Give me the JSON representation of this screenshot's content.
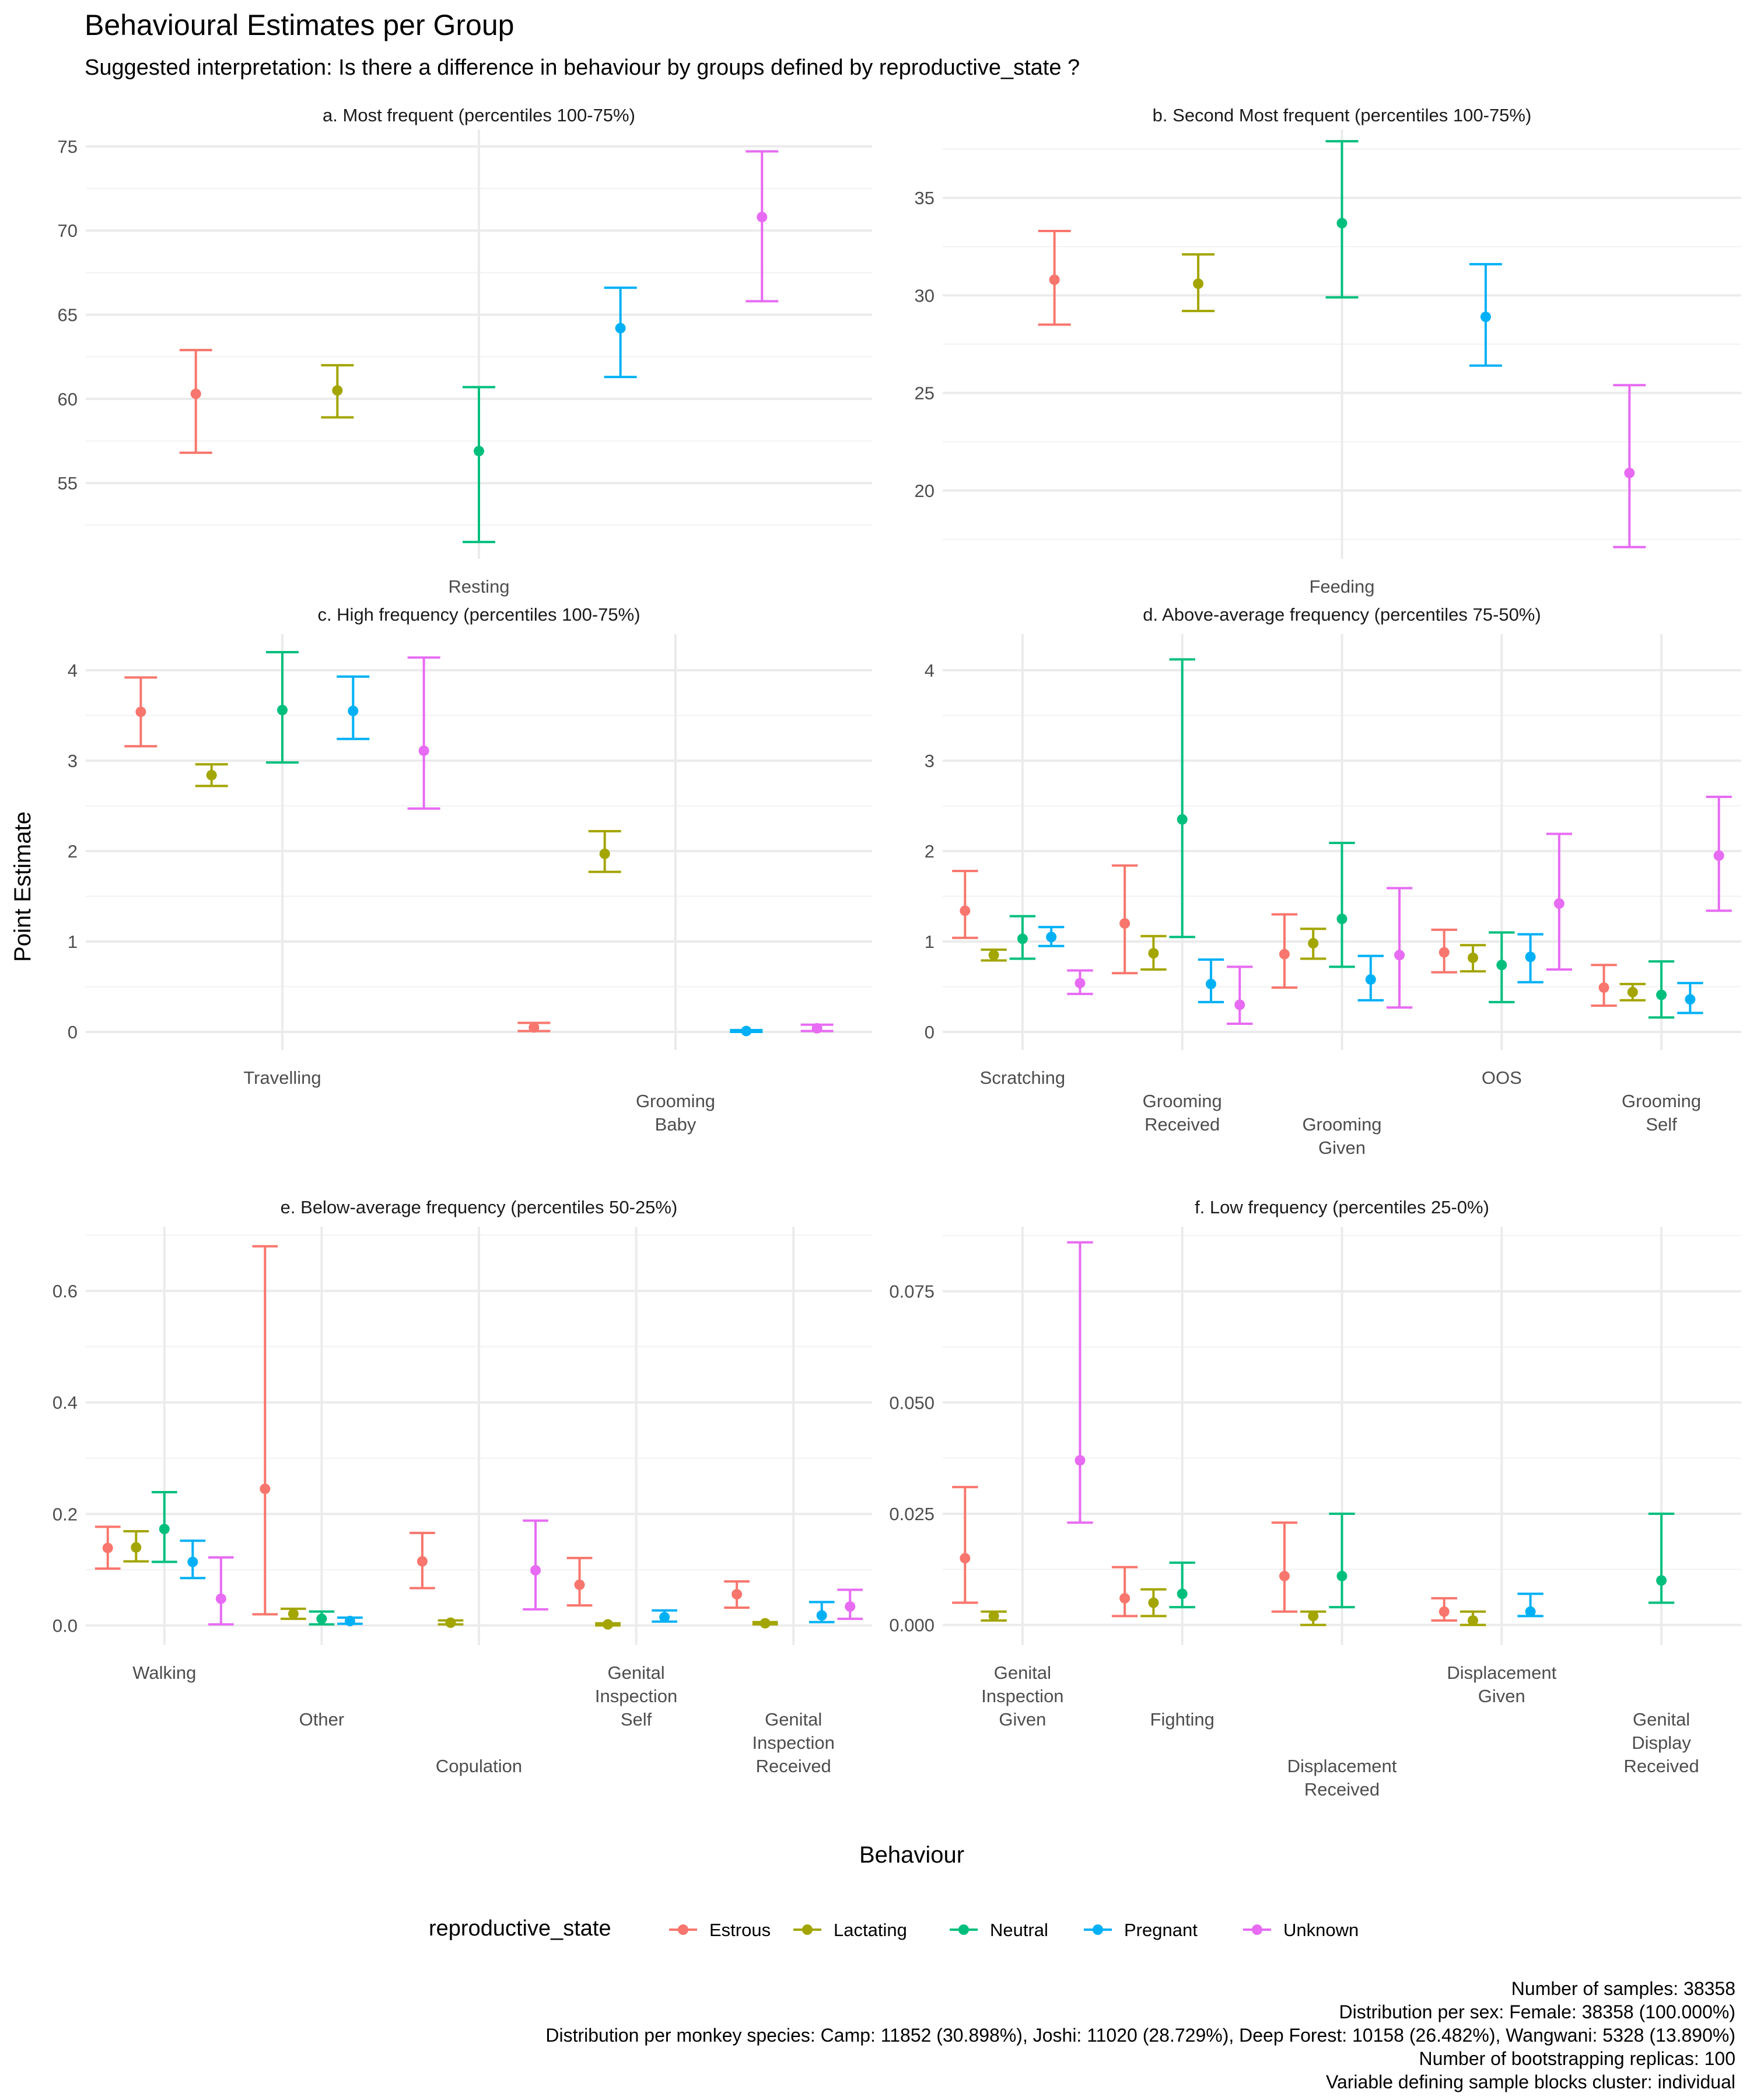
{
  "title": "Behavioural Estimates per Group",
  "subtitle": "Suggested interpretation: Is there a difference in behaviour by groups defined by reproductive_state ?",
  "ylabel": "Point Estimate",
  "xlabel": "Behaviour",
  "legend": {
    "title": "reproductive_state",
    "placement": "bottom",
    "groups": [
      "Estrous",
      "Lactating",
      "Neutral",
      "Pregnant",
      "Unknown"
    ],
    "colors": [
      "#F8766D",
      "#A3A500",
      "#00BF7D",
      "#00B0F6",
      "#E76BF3"
    ]
  },
  "caption": [
    "Number of samples: 38358",
    "Distribution per sex: Female: 38358 (100.000%)",
    "Distribution per monkey species: Camp: 11852 (30.898%), Joshi: 11020 (28.729%), Deep Forest: 10158 (26.482%), Wangwani: 5328 (13.890%)",
    "Number of bootstrapping replicas: 100",
    "Variable defining sample blocks cluster: individual"
  ],
  "chart_data": [
    {
      "type": "errorbar",
      "title": "a. Most frequent (percentiles 100-75%)",
      "ylim": [
        50.5,
        76
      ],
      "yticks": [
        55,
        60,
        65,
        70,
        75
      ],
      "grid": true,
      "categories": [
        {
          "name": "Resting",
          "label_lines": [
            "Resting"
          ],
          "label_row": 0,
          "points": [
            {
              "group": "Estrous",
              "estimate": 60.3,
              "lower": 56.8,
              "upper": 62.9
            },
            {
              "group": "Lactating",
              "estimate": 60.5,
              "lower": 58.9,
              "upper": 62.0
            },
            {
              "group": "Neutral",
              "estimate": 56.9,
              "lower": 51.5,
              "upper": 60.7
            },
            {
              "group": "Pregnant",
              "estimate": 64.2,
              "lower": 61.3,
              "upper": 66.6
            },
            {
              "group": "Unknown",
              "estimate": 70.8,
              "lower": 65.8,
              "upper": 74.7
            }
          ]
        }
      ]
    },
    {
      "type": "errorbar",
      "title": "b. Second Most frequent (percentiles 100-75%)",
      "ylim": [
        16.5,
        38.5
      ],
      "yticks": [
        20,
        25,
        30,
        35
      ],
      "grid": true,
      "categories": [
        {
          "name": "Feeding",
          "label_lines": [
            "Feeding"
          ],
          "label_row": 0,
          "points": [
            {
              "group": "Estrous",
              "estimate": 30.8,
              "lower": 28.5,
              "upper": 33.3
            },
            {
              "group": "Lactating",
              "estimate": 30.6,
              "lower": 29.2,
              "upper": 32.1
            },
            {
              "group": "Neutral",
              "estimate": 33.7,
              "lower": 29.9,
              "upper": 37.9
            },
            {
              "group": "Pregnant",
              "estimate": 28.9,
              "lower": 26.4,
              "upper": 31.6
            },
            {
              "group": "Unknown",
              "estimate": 20.9,
              "lower": 17.1,
              "upper": 25.4
            }
          ]
        }
      ]
    },
    {
      "type": "errorbar",
      "title": "c. High frequency (percentiles 100-75%)",
      "ylim": [
        -0.2,
        4.4
      ],
      "yticks": [
        0,
        1,
        2,
        3,
        4
      ],
      "grid": true,
      "categories": [
        {
          "name": "Travelling",
          "label_lines": [
            "Travelling"
          ],
          "label_row": 0,
          "points": [
            {
              "group": "Estrous",
              "estimate": 3.54,
              "lower": 3.16,
              "upper": 3.92
            },
            {
              "group": "Lactating",
              "estimate": 2.84,
              "lower": 2.72,
              "upper": 2.96
            },
            {
              "group": "Neutral",
              "estimate": 3.56,
              "lower": 2.98,
              "upper": 4.2
            },
            {
              "group": "Pregnant",
              "estimate": 3.55,
              "lower": 3.24,
              "upper": 3.93
            },
            {
              "group": "Unknown",
              "estimate": 3.11,
              "lower": 2.47,
              "upper": 4.14
            }
          ]
        },
        {
          "name": "Grooming Baby",
          "label_lines": [
            "Grooming",
            "Baby"
          ],
          "label_row": 1,
          "points": [
            {
              "group": "Estrous",
              "estimate": 0.05,
              "lower": 0.01,
              "upper": 0.1
            },
            {
              "group": "Lactating",
              "estimate": 1.97,
              "lower": 1.77,
              "upper": 2.22
            },
            {
              "group": "Pregnant",
              "estimate": 0.01,
              "lower": 0.0,
              "upper": 0.02
            },
            {
              "group": "Unknown",
              "estimate": 0.04,
              "lower": 0.01,
              "upper": 0.08
            }
          ]
        }
      ]
    },
    {
      "type": "errorbar",
      "title": "d. Above-average frequency (percentiles 75-50%)",
      "ylim": [
        -0.2,
        4.4
      ],
      "yticks": [
        0,
        1,
        2,
        3,
        4
      ],
      "grid": true,
      "categories": [
        {
          "name": "Scratching",
          "label_lines": [
            "Scratching"
          ],
          "label_row": 0,
          "points": [
            {
              "group": "Estrous",
              "estimate": 1.34,
              "lower": 1.04,
              "upper": 1.78
            },
            {
              "group": "Lactating",
              "estimate": 0.85,
              "lower": 0.79,
              "upper": 0.91
            },
            {
              "group": "Neutral",
              "estimate": 1.03,
              "lower": 0.81,
              "upper": 1.28
            },
            {
              "group": "Pregnant",
              "estimate": 1.05,
              "lower": 0.95,
              "upper": 1.16
            },
            {
              "group": "Unknown",
              "estimate": 0.54,
              "lower": 0.42,
              "upper": 0.68
            }
          ]
        },
        {
          "name": "Grooming Received",
          "label_lines": [
            "Grooming",
            "Received"
          ],
          "label_row": 1,
          "points": [
            {
              "group": "Estrous",
              "estimate": 1.2,
              "lower": 0.65,
              "upper": 1.84
            },
            {
              "group": "Lactating",
              "estimate": 0.87,
              "lower": 0.69,
              "upper": 1.06
            },
            {
              "group": "Neutral",
              "estimate": 2.35,
              "lower": 1.05,
              "upper": 4.12
            },
            {
              "group": "Pregnant",
              "estimate": 0.53,
              "lower": 0.33,
              "upper": 0.8
            },
            {
              "group": "Unknown",
              "estimate": 0.3,
              "lower": 0.09,
              "upper": 0.72
            }
          ]
        },
        {
          "name": "Grooming Given",
          "label_lines": [
            "Grooming",
            "Given"
          ],
          "label_row": 2,
          "points": [
            {
              "group": "Estrous",
              "estimate": 0.86,
              "lower": 0.49,
              "upper": 1.3
            },
            {
              "group": "Lactating",
              "estimate": 0.98,
              "lower": 0.81,
              "upper": 1.14
            },
            {
              "group": "Neutral",
              "estimate": 1.25,
              "lower": 0.72,
              "upper": 2.09
            },
            {
              "group": "Pregnant",
              "estimate": 0.58,
              "lower": 0.35,
              "upper": 0.84
            },
            {
              "group": "Unknown",
              "estimate": 0.85,
              "lower": 0.27,
              "upper": 1.59
            }
          ]
        },
        {
          "name": "OOS",
          "label_lines": [
            "OOS"
          ],
          "label_row": 0,
          "points": [
            {
              "group": "Estrous",
              "estimate": 0.88,
              "lower": 0.66,
              "upper": 1.13
            },
            {
              "group": "Lactating",
              "estimate": 0.82,
              "lower": 0.67,
              "upper": 0.96
            },
            {
              "group": "Neutral",
              "estimate": 0.74,
              "lower": 0.33,
              "upper": 1.1
            },
            {
              "group": "Pregnant",
              "estimate": 0.83,
              "lower": 0.55,
              "upper": 1.08
            },
            {
              "group": "Unknown",
              "estimate": 1.42,
              "lower": 0.69,
              "upper": 2.19
            }
          ]
        },
        {
          "name": "Grooming Self",
          "label_lines": [
            "Grooming",
            "Self"
          ],
          "label_row": 1,
          "points": [
            {
              "group": "Estrous",
              "estimate": 0.49,
              "lower": 0.29,
              "upper": 0.74
            },
            {
              "group": "Lactating",
              "estimate": 0.44,
              "lower": 0.35,
              "upper": 0.53
            },
            {
              "group": "Neutral",
              "estimate": 0.41,
              "lower": 0.16,
              "upper": 0.78
            },
            {
              "group": "Pregnant",
              "estimate": 0.36,
              "lower": 0.21,
              "upper": 0.54
            },
            {
              "group": "Unknown",
              "estimate": 1.95,
              "lower": 1.34,
              "upper": 2.6
            }
          ]
        }
      ]
    },
    {
      "type": "errorbar",
      "title": "e. Below-average frequency (percentiles 50-25%)",
      "ylim": [
        -0.035,
        0.715
      ],
      "yticks": [
        0.0,
        0.2,
        0.4,
        0.6
      ],
      "ytick_labels": [
        "0.0",
        "0.2",
        "0.4",
        "0.6"
      ],
      "grid": true,
      "categories": [
        {
          "name": "Walking",
          "label_lines": [
            "Walking"
          ],
          "label_row": 0,
          "points": [
            {
              "group": "Estrous",
              "estimate": 0.139,
              "lower": 0.102,
              "upper": 0.177
            },
            {
              "group": "Lactating",
              "estimate": 0.14,
              "lower": 0.115,
              "upper": 0.169
            },
            {
              "group": "Neutral",
              "estimate": 0.173,
              "lower": 0.114,
              "upper": 0.239
            },
            {
              "group": "Pregnant",
              "estimate": 0.114,
              "lower": 0.085,
              "upper": 0.152
            },
            {
              "group": "Unknown",
              "estimate": 0.048,
              "lower": 0.002,
              "upper": 0.122
            }
          ]
        },
        {
          "name": "Other",
          "label_lines": [
            "Other"
          ],
          "label_row": 2,
          "points": [
            {
              "group": "Estrous",
              "estimate": 0.245,
              "lower": 0.02,
              "upper": 0.68
            },
            {
              "group": "Lactating",
              "estimate": 0.021,
              "lower": 0.012,
              "upper": 0.03
            },
            {
              "group": "Neutral",
              "estimate": 0.012,
              "lower": 0.002,
              "upper": 0.025
            },
            {
              "group": "Pregnant",
              "estimate": 0.008,
              "lower": 0.003,
              "upper": 0.014
            }
          ]
        },
        {
          "name": "Copulation",
          "label_lines": [
            "Copulation"
          ],
          "label_row": 4,
          "points": [
            {
              "group": "Estrous",
              "estimate": 0.115,
              "lower": 0.067,
              "upper": 0.166
            },
            {
              "group": "Lactating",
              "estimate": 0.005,
              "lower": 0.002,
              "upper": 0.009
            },
            {
              "group": "Unknown",
              "estimate": 0.099,
              "lower": 0.029,
              "upper": 0.188
            }
          ]
        },
        {
          "name": "Genital Inspection Self",
          "label_lines": [
            "Genital",
            "Inspection",
            "Self"
          ],
          "label_row": 0,
          "points": [
            {
              "group": "Estrous",
              "estimate": 0.073,
              "lower": 0.036,
              "upper": 0.121
            },
            {
              "group": "Lactating",
              "estimate": 0.002,
              "lower": 0.0,
              "upper": 0.004
            },
            {
              "group": "Pregnant",
              "estimate": 0.015,
              "lower": 0.007,
              "upper": 0.027
            }
          ]
        },
        {
          "name": "Genital Inspection Received",
          "label_lines": [
            "Genital",
            "Inspection",
            "Received"
          ],
          "label_row": 2,
          "points": [
            {
              "group": "Estrous",
              "estimate": 0.056,
              "lower": 0.032,
              "upper": 0.079
            },
            {
              "group": "Lactating",
              "estimate": 0.004,
              "lower": 0.002,
              "upper": 0.006
            },
            {
              "group": "Pregnant",
              "estimate": 0.018,
              "lower": 0.006,
              "upper": 0.042
            },
            {
              "group": "Unknown",
              "estimate": 0.034,
              "lower": 0.012,
              "upper": 0.064
            }
          ]
        }
      ]
    },
    {
      "type": "errorbar",
      "title": "f. Low frequency (percentiles 25-0%)",
      "ylim": [
        -0.0045,
        0.0895
      ],
      "yticks": [
        0.0,
        0.025,
        0.05,
        0.075
      ],
      "ytick_labels": [
        "0.000",
        "0.025",
        "0.050",
        "0.075"
      ],
      "grid": true,
      "categories": [
        {
          "name": "Genital Inspection Given",
          "label_lines": [
            "Genital",
            "Inspection",
            "Given"
          ],
          "label_row": 0,
          "points": [
            {
              "group": "Estrous",
              "estimate": 0.015,
              "lower": 0.005,
              "upper": 0.031
            },
            {
              "group": "Lactating",
              "estimate": 0.002,
              "lower": 0.001,
              "upper": 0.003
            },
            {
              "group": "Unknown",
              "estimate": 0.037,
              "lower": 0.023,
              "upper": 0.086
            }
          ]
        },
        {
          "name": "Fighting",
          "label_lines": [
            "Fighting"
          ],
          "label_row": 2,
          "points": [
            {
              "group": "Estrous",
              "estimate": 0.006,
              "lower": 0.002,
              "upper": 0.013
            },
            {
              "group": "Lactating",
              "estimate": 0.005,
              "lower": 0.002,
              "upper": 0.008
            },
            {
              "group": "Neutral",
              "estimate": 0.007,
              "lower": 0.004,
              "upper": 0.014
            }
          ]
        },
        {
          "name": "Displacement Received",
          "label_lines": [
            "Displacement",
            "Received"
          ],
          "label_row": 4,
          "points": [
            {
              "group": "Estrous",
              "estimate": 0.011,
              "lower": 0.003,
              "upper": 0.023
            },
            {
              "group": "Lactating",
              "estimate": 0.002,
              "lower": 0.0,
              "upper": 0.003
            },
            {
              "group": "Neutral",
              "estimate": 0.011,
              "lower": 0.004,
              "upper": 0.025
            }
          ]
        },
        {
          "name": "Displacement Given",
          "label_lines": [
            "Displacement",
            "Given"
          ],
          "label_row": 0,
          "points": [
            {
              "group": "Estrous",
              "estimate": 0.003,
              "lower": 0.001,
              "upper": 0.006
            },
            {
              "group": "Lactating",
              "estimate": 0.001,
              "lower": 0.0,
              "upper": 0.003
            },
            {
              "group": "Pregnant",
              "estimate": 0.003,
              "lower": 0.002,
              "upper": 0.007
            }
          ]
        },
        {
          "name": "Genital Display Received",
          "label_lines": [
            "Genital",
            "Display",
            "Received"
          ],
          "label_row": 2,
          "points": [
            {
              "group": "Neutral",
              "estimate": 0.01,
              "lower": 0.005,
              "upper": 0.025
            }
          ]
        }
      ]
    }
  ]
}
